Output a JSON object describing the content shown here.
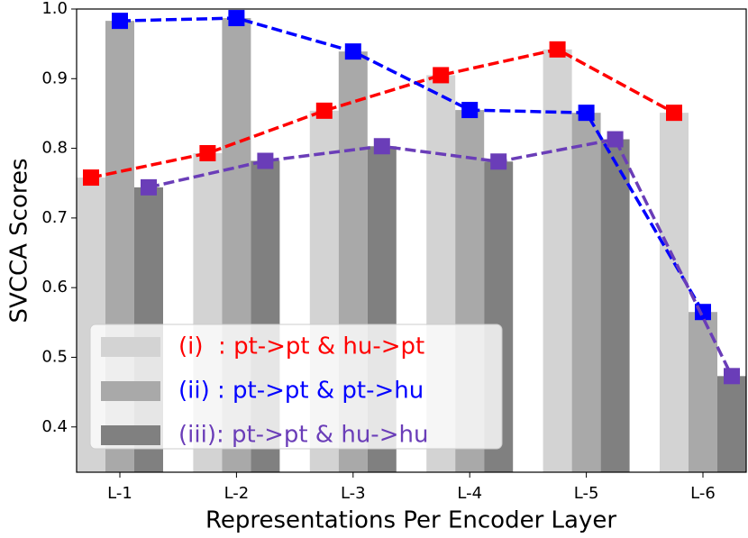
{
  "chart_data": {
    "type": "bar_line",
    "xlabel": "Representations Per Encoder Layer",
    "ylabel": "SVCCA Scores",
    "categories": [
      "L-1",
      "L-2",
      "L-3",
      "L-4",
      "L-5",
      "L-6"
    ],
    "ylim": [
      0.335,
      1.0
    ],
    "yticks": [
      0.4,
      0.5,
      0.6,
      0.7,
      0.8,
      0.9,
      {
        "value": 1.0,
        "label": "1.0"
      }
    ],
    "legend": "lower left",
    "series": [
      {
        "name": "(i)  : pt->pt & hu->pt",
        "bar_color": "#d3d3d3",
        "line_color": "#ff0000",
        "values": [
          0.758,
          0.793,
          0.854,
          0.905,
          0.942,
          0.851
        ]
      },
      {
        "name": "(ii) : pt->pt & pt->hu",
        "bar_color": "#a9a9a9",
        "line_color": "#0000ff",
        "values": [
          0.983,
          0.987,
          0.939,
          0.855,
          0.851,
          0.565
        ]
      },
      {
        "name": "(iii): pt->pt & hu->hu",
        "bar_color": "#808080",
        "line_color": "#6a3db8",
        "values": [
          0.744,
          0.782,
          0.803,
          0.781,
          0.813,
          0.473
        ]
      }
    ]
  }
}
